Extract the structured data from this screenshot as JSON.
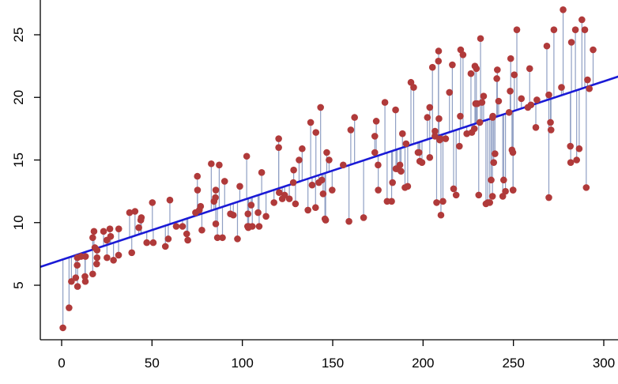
{
  "chart_data": {
    "type": "scatter",
    "title": "",
    "xlabel": "",
    "ylabel": "",
    "xlim": [
      -12,
      300
    ],
    "ylim": [
      0,
      27
    ],
    "x_ticks": [
      0,
      50,
      100,
      150,
      200,
      250,
      300
    ],
    "y_ticks": [
      5,
      10,
      15,
      20,
      25
    ],
    "x_tick_labels": [
      "0",
      "50",
      "100",
      "150",
      "200",
      "250",
      "300"
    ],
    "y_tick_labels": [
      "5",
      "10",
      "15",
      "20",
      "25"
    ],
    "grid": false,
    "legend": "none",
    "colors": {
      "points": "#b03a3a",
      "fit_line": "#1a1ad6",
      "residuals": "#8f9fc4"
    },
    "fit_line": {
      "intercept": 7.03,
      "slope": 0.0475
    },
    "series": [
      {
        "points": [
          [
            0.7,
            1.6
          ],
          [
            4.1,
            3.2
          ],
          [
            5.4,
            5.3
          ],
          [
            7.8,
            5.6
          ],
          [
            8.6,
            6.6
          ],
          [
            8.7,
            7.2
          ],
          [
            8.8,
            4.9
          ],
          [
            10.7,
            7.3
          ],
          [
            12.9,
            5.7
          ],
          [
            13.1,
            5.3
          ],
          [
            13.2,
            7.3
          ],
          [
            17.2,
            5.9
          ],
          [
            17.2,
            8.8
          ],
          [
            17.9,
            9.3
          ],
          [
            18.4,
            8.0
          ],
          [
            19.4,
            6.7
          ],
          [
            19.6,
            7.8
          ],
          [
            19.6,
            7.2
          ],
          [
            23.2,
            9.3
          ],
          [
            25.0,
            8.6
          ],
          [
            25.1,
            7.2
          ],
          [
            26.7,
            9.5
          ],
          [
            27.1,
            8.9
          ],
          [
            28.7,
            7.0
          ],
          [
            31.5,
            7.4
          ],
          [
            31.6,
            9.5
          ],
          [
            37.6,
            10.8
          ],
          [
            38.8,
            7.6
          ],
          [
            40.6,
            10.9
          ],
          [
            42.7,
            9.6
          ],
          [
            43.8,
            10.2
          ],
          [
            44.1,
            10.4
          ],
          [
            47.1,
            8.4
          ],
          [
            50.2,
            11.6
          ],
          [
            50.7,
            8.4
          ],
          [
            57.4,
            8.1
          ],
          [
            59.0,
            8.7
          ],
          [
            59.9,
            11.8
          ],
          [
            63.4,
            9.7
          ],
          [
            66.9,
            9.7
          ],
          [
            69.2,
            9.1
          ],
          [
            69.8,
            8.6
          ],
          [
            74.1,
            10.8
          ],
          [
            75.1,
            13.7
          ],
          [
            75.2,
            12.6
          ],
          [
            76.2,
            11.0
          ],
          [
            76.9,
            11.3
          ],
          [
            77.6,
            9.4
          ],
          [
            82.8,
            14.7
          ],
          [
            84.3,
            11.7
          ],
          [
            85.1,
            12.0
          ],
          [
            85.3,
            9.9
          ],
          [
            85.3,
            12.6
          ],
          [
            86.2,
            8.8
          ],
          [
            87.2,
            14.6
          ],
          [
            89.0,
            8.8
          ],
          [
            90.2,
            13.3
          ],
          [
            93.4,
            10.7
          ],
          [
            95.0,
            10.6
          ],
          [
            97.3,
            8.7
          ],
          [
            98.6,
            12.9
          ],
          [
            102.4,
            15.3
          ],
          [
            102.9,
            9.7
          ],
          [
            103.1,
            10.7
          ],
          [
            103.3,
            9.6
          ],
          [
            103.5,
            9.7
          ],
          [
            104.9,
            11.4
          ],
          [
            105.5,
            9.7
          ],
          [
            108.7,
            10.8
          ],
          [
            109.3,
            9.7
          ],
          [
            110.7,
            14.0
          ],
          [
            113.1,
            10.5
          ],
          [
            117.5,
            11.6
          ],
          [
            120.1,
            16.7
          ],
          [
            120.1,
            16.0
          ],
          [
            120.4,
            12.4
          ],
          [
            122.1,
            11.9
          ],
          [
            123.4,
            12.2
          ],
          [
            126.0,
            11.9
          ],
          [
            128.2,
            13.2
          ],
          [
            128.4,
            14.2
          ],
          [
            129.4,
            11.5
          ],
          [
            131.4,
            15.0
          ],
          [
            133.1,
            15.9
          ],
          [
            136.3,
            11.0
          ],
          [
            137.8,
            18.0
          ],
          [
            138.6,
            13.0
          ],
          [
            140.5,
            11.2
          ],
          [
            140.7,
            17.2
          ],
          [
            142.3,
            13.2
          ],
          [
            143.3,
            19.2
          ],
          [
            144.0,
            13.4
          ],
          [
            144.7,
            12.3
          ],
          [
            145.7,
            10.3
          ],
          [
            146.1,
            10.2
          ],
          [
            146.7,
            15.6
          ],
          [
            148.0,
            15.0
          ],
          [
            149.7,
            12.6
          ],
          [
            155.8,
            14.6
          ],
          [
            159.0,
            10.1
          ],
          [
            160.0,
            17.4
          ],
          [
            162.1,
            18.4
          ],
          [
            167.1,
            10.4
          ],
          [
            173.3,
            15.6
          ],
          [
            173.3,
            16.9
          ],
          [
            174.1,
            18.1
          ],
          [
            175.1,
            14.6
          ],
          [
            175.2,
            12.6
          ],
          [
            178.9,
            19.6
          ],
          [
            180.1,
            11.7
          ],
          [
            182.6,
            11.7
          ],
          [
            183.1,
            13.2
          ],
          [
            184.8,
            19.0
          ],
          [
            185.0,
            14.3
          ],
          [
            185.6,
            14.3
          ],
          [
            187.2,
            14.6
          ],
          [
            187.8,
            14.1
          ],
          [
            188.6,
            17.1
          ],
          [
            190.0,
            12.8
          ],
          [
            190.6,
            16.3
          ],
          [
            191.5,
            12.9
          ],
          [
            193.3,
            21.2
          ],
          [
            194.8,
            20.8
          ],
          [
            197.2,
            15.6
          ],
          [
            197.8,
            15.6
          ],
          [
            198.2,
            14.9
          ],
          [
            199.4,
            14.8
          ],
          [
            202.4,
            18.4
          ],
          [
            203.7,
            15.2
          ],
          [
            203.7,
            19.2
          ],
          [
            205.2,
            22.4
          ],
          [
            206.6,
            17.3
          ],
          [
            206.6,
            16.9
          ],
          [
            207.5,
            11.6
          ],
          [
            208.5,
            22.9
          ],
          [
            208.6,
            23.7
          ],
          [
            208.8,
            18.3
          ],
          [
            209.2,
            16.6
          ],
          [
            209.5,
            16.7
          ],
          [
            209.9,
            10.6
          ],
          [
            211.0,
            11.7
          ],
          [
            212.5,
            16.7
          ],
          [
            214.6,
            20.4
          ],
          [
            216.2,
            22.6
          ],
          [
            216.9,
            12.7
          ],
          [
            218.3,
            12.2
          ],
          [
            220.1,
            16.1
          ],
          [
            220.6,
            18.5
          ],
          [
            220.8,
            23.8
          ],
          [
            222.1,
            23.4
          ],
          [
            224.2,
            17.1
          ],
          [
            226.5,
            21.9
          ],
          [
            227.0,
            17.2
          ],
          [
            228.4,
            17.5
          ],
          [
            228.7,
            22.5
          ],
          [
            229.1,
            19.5
          ],
          [
            229.5,
            22.3
          ],
          [
            230.0,
            19.5
          ],
          [
            230.8,
            12.2
          ],
          [
            231.4,
            18.0
          ],
          [
            231.8,
            24.7
          ],
          [
            232.6,
            19.6
          ],
          [
            233.5,
            20.1
          ],
          [
            234.8,
            11.5
          ],
          [
            235.8,
            11.6
          ],
          [
            236.9,
            11.6
          ],
          [
            237.7,
            13.4
          ],
          [
            238.4,
            12.1
          ],
          [
            238.5,
            18.4
          ],
          [
            238.6,
            18.5
          ],
          [
            239.1,
            14.8
          ],
          [
            239.8,
            15.5
          ],
          [
            240.8,
            21.5
          ],
          [
            241.1,
            22.2
          ],
          [
            241.8,
            19.7
          ],
          [
            244.1,
            12.1
          ],
          [
            244.6,
            13.4
          ],
          [
            245.6,
            12.5
          ],
          [
            247.6,
            18.8
          ],
          [
            248.2,
            20.5
          ],
          [
            248.5,
            23.1
          ],
          [
            249.2,
            15.8
          ],
          [
            249.7,
            15.6
          ],
          [
            249.8,
            12.6
          ],
          [
            249.8,
            12.6
          ],
          [
            250.5,
            21.8
          ],
          [
            251.9,
            25.4
          ],
          [
            254.4,
            19.9
          ],
          [
            258.0,
            19.2
          ],
          [
            259.0,
            22.3
          ],
          [
            259.7,
            19.4
          ],
          [
            262.4,
            17.6
          ],
          [
            263.0,
            19.8
          ],
          [
            268.5,
            24.1
          ],
          [
            269.6,
            12.0
          ],
          [
            269.6,
            20.2
          ],
          [
            270.5,
            18.0
          ],
          [
            270.8,
            17.4
          ],
          [
            272.4,
            25.4
          ],
          [
            276.6,
            20.8
          ],
          [
            277.5,
            27.0
          ],
          [
            281.5,
            16.1
          ],
          [
            281.7,
            14.8
          ],
          [
            282.1,
            24.4
          ],
          [
            284.3,
            25.4
          ],
          [
            285.0,
            15.0
          ],
          [
            286.4,
            15.9
          ],
          [
            287.9,
            26.2
          ],
          [
            289.5,
            25.4
          ],
          [
            290.3,
            12.8
          ],
          [
            291.0,
            21.4
          ],
          [
            292.0,
            20.7
          ],
          [
            294.1,
            23.8
          ]
        ]
      }
    ]
  }
}
